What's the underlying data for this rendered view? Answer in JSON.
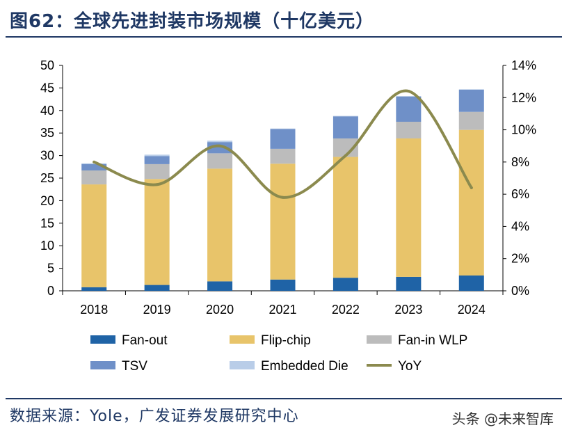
{
  "title": "图62：全球先进封装市场规模（十亿美元）",
  "source": "数据来源：Yole，广发证券发展研究中心",
  "watermark": "头条 @未来智库",
  "colors": {
    "title": "#1f3864",
    "fan_out": "#1f63a6",
    "flip_chip": "#e8c46a",
    "fan_in_wlp": "#bcbcbc",
    "tsv": "#6f90c8",
    "embedded_die": "#b9cde8",
    "yoy": "#8b8a4e"
  },
  "chart_data": {
    "type": "bar",
    "stacked": true,
    "categories": [
      "2018",
      "2019",
      "2020",
      "2021",
      "2022",
      "2023",
      "2024"
    ],
    "series": [
      {
        "name": "Fan-out",
        "values": [
          0.8,
          1.3,
          2.1,
          2.5,
          2.9,
          3.1,
          3.4
        ]
      },
      {
        "name": "Flip-chip",
        "values": [
          22.8,
          23.5,
          25.0,
          25.7,
          26.8,
          30.7,
          32.3
        ]
      },
      {
        "name": "Fan-in WLP",
        "values": [
          3.1,
          3.3,
          3.4,
          3.3,
          4.1,
          3.7,
          4.0
        ]
      },
      {
        "name": "TSV",
        "values": [
          1.4,
          1.8,
          2.5,
          4.4,
          4.9,
          5.6,
          4.9
        ]
      },
      {
        "name": "Embedded Die",
        "values": [
          0.2,
          0.3,
          0.3,
          0.1,
          0.1,
          0.1,
          0.1
        ]
      }
    ],
    "line": {
      "name": "YoY",
      "axis": "right",
      "values": [
        8.0,
        6.6,
        9.0,
        5.8,
        8.4,
        12.4,
        6.4
      ]
    },
    "ylim": [
      0,
      50
    ],
    "yticks": [
      "0",
      "5",
      "10",
      "15",
      "20",
      "25",
      "30",
      "35",
      "40",
      "45",
      "50"
    ],
    "y2lim": [
      0,
      14
    ],
    "y2ticks": [
      "0%",
      "2%",
      "4%",
      "6%",
      "8%",
      "10%",
      "12%",
      "14%"
    ],
    "legend_position": "bottom",
    "grid": false
  }
}
